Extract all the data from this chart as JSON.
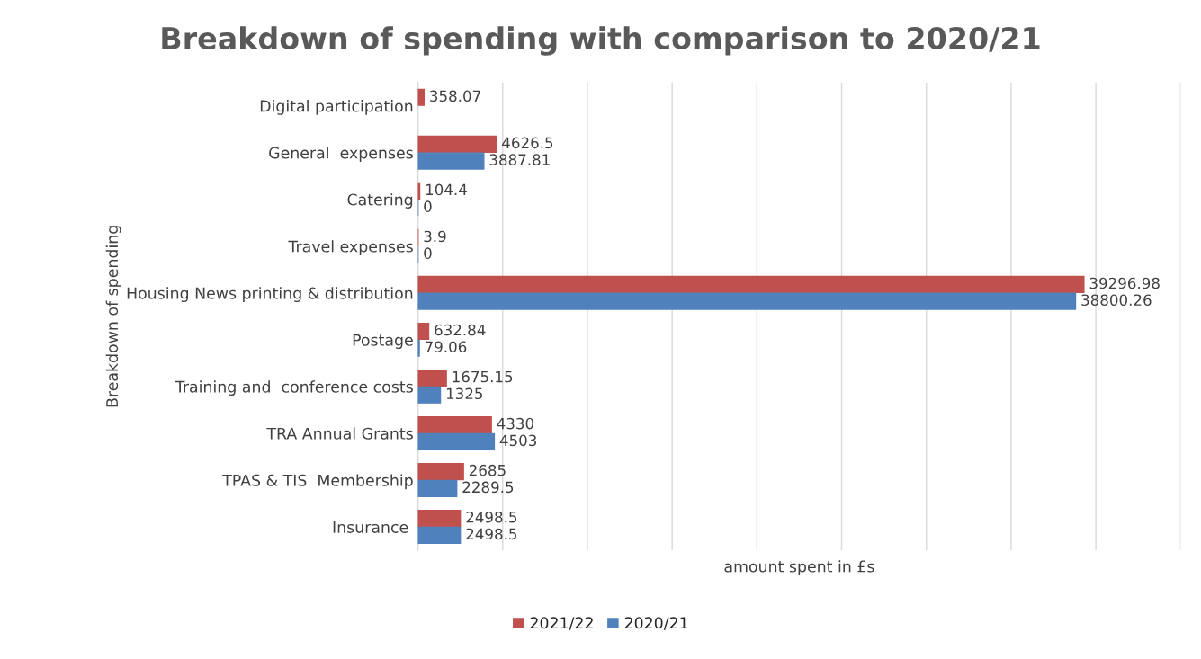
{
  "chart_data": {
    "type": "bar",
    "orientation": "horizontal",
    "title": "Breakdown of spending with comparison to 2020/21",
    "xlabel": "amount spent in £s",
    "ylabel": "Breakdown of spending",
    "categories": [
      "Digital participation",
      "General  expenses",
      "Catering",
      "Travel expenses",
      "Housing News printing & distribution",
      "Postage",
      "Training and  conference costs",
      "TRA Annual Grants",
      "TPAS & TIS  Membership",
      "Insurance "
    ],
    "series": [
      {
        "name": "2021/22",
        "color": "#c0504d",
        "values": [
          358.07,
          4626.5,
          104.4,
          3.9,
          39296.98,
          632.84,
          1675.15,
          4330,
          2685,
          2498.5
        ]
      },
      {
        "name": "2020/21",
        "color": "#4f81bd",
        "values": [
          null,
          3887.81,
          0,
          0,
          38800.26,
          79.06,
          1325,
          4503,
          2289.5,
          2498.5
        ]
      }
    ],
    "xlim": [
      0,
      45000
    ],
    "xticks": [
      {
        "value": 0,
        "label": null
      },
      {
        "value": 5000,
        "label": null
      },
      {
        "value": 10000,
        "label": null
      },
      {
        "value": 15000,
        "label": null
      },
      {
        "value": 20000,
        "label": null
      },
      {
        "value": 25000,
        "label": null
      },
      {
        "value": 30000,
        "label": null
      },
      {
        "value": 35000,
        "label": null
      },
      {
        "value": 40000,
        "label": null
      },
      {
        "value": 45000,
        "label": null
      }
    ],
    "tick_labels": "y",
    "data_labels": true,
    "grid": "x",
    "legend": "bottom"
  }
}
